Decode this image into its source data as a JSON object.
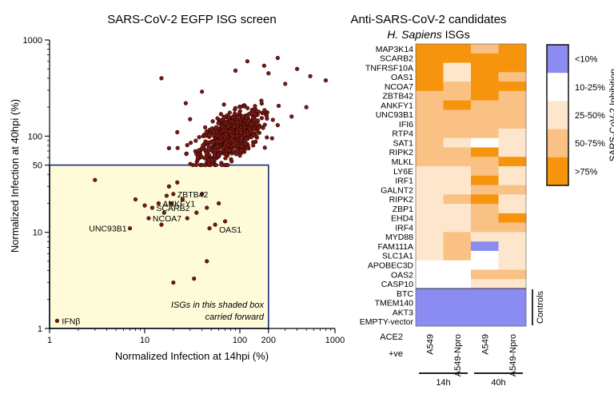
{
  "scatter": {
    "title": "SARS-CoV-2 EGFP ISG screen",
    "xlabel": "Normalized Infection at 14hpi (%)",
    "ylabel": "Normalized Infection at 40hpi (%)",
    "x_ticks": [
      "1",
      "10",
      "100",
      "200",
      "1000"
    ],
    "y_ticks": [
      "1",
      "10",
      "50",
      "100",
      "1000"
    ],
    "box_caption_line1": "ISGs in this shaded box",
    "box_caption_line2": "carried forward",
    "colors": {
      "point": "#7a1a12",
      "point_edge": "#2a0504",
      "box_fill": "#fdfbd8",
      "box_edge": "#1c2a80"
    }
  },
  "heatmap": {
    "title": "Anti-SARS-CoV-2 candidates",
    "subtitle_italic": "H. Sapiens",
    "subtitle_rest": " ISGs",
    "row_labels": [
      "MAP3K14",
      "SCARB2",
      "TNFRSF10A",
      "OAS1",
      "NCOA7",
      "ZBTB42",
      "ANKFY1",
      "UNC93B1",
      "IFI6",
      "RTP4",
      "SAT1",
      "RIPK2",
      "MLKL",
      "LY6E",
      "IRF1",
      "GALNT2",
      "RIPK2",
      "ZBP1",
      "EHD4",
      "IRF4",
      "MYD88",
      "FAM111A",
      "SLC1A1",
      "APOBEC3D",
      "OAS2",
      "CASP10",
      "BTC",
      "TMEM140",
      "AKT3",
      "EMPTY-vector"
    ],
    "col_labels": [
      "A549",
      "A549-Npro",
      "A549",
      "A549-Npro"
    ],
    "ace2_label": "ACE2",
    "ace2_sub": "+ve",
    "time_labels": [
      "14h",
      "40h"
    ],
    "controls_label": "Controls",
    "legend_title": "SARS-CoV-2 Inhibition",
    "legend_labels": [
      "<10%",
      "10-25%",
      "25-50%",
      "50-75%",
      ">75%"
    ],
    "level_colors": [
      "#8a8cf2",
      "#ffffff",
      "#fde6cc",
      "#f9c184",
      "#f7940e"
    ]
  },
  "chart_data": [
    {
      "type": "scatter",
      "title": "SARS-CoV-2 EGFP ISG screen",
      "xlabel": "Normalized Infection at 14hpi (%)",
      "ylabel": "Normalized Infection at 40hpi (%)",
      "x_scale": "log",
      "y_scale": "log",
      "xlim": [
        1,
        1000
      ],
      "ylim": [
        1,
        1000
      ],
      "threshold_box": {
        "x_max": 200,
        "y_max": 50
      },
      "labeled_points": [
        {
          "label": "IFNβ",
          "x": 1.2,
          "y": 1.2
        },
        {
          "label": "UNC93B1",
          "x": 7,
          "y": 11
        },
        {
          "label": "NCOA7",
          "x": 11,
          "y": 14
        },
        {
          "label": "SCARB2",
          "x": 12,
          "y": 18
        },
        {
          "label": "ANKFY1",
          "x": 14,
          "y": 20
        },
        {
          "label": "ZBTB42",
          "x": 20,
          "y": 25
        },
        {
          "label": "OAS1",
          "x": 55,
          "y": 12
        }
      ],
      "low_points": [
        {
          "x": 3,
          "y": 35
        },
        {
          "x": 8,
          "y": 22
        },
        {
          "x": 10,
          "y": 19
        },
        {
          "x": 15,
          "y": 12
        },
        {
          "x": 16,
          "y": 16
        },
        {
          "x": 17,
          "y": 24
        },
        {
          "x": 18,
          "y": 30
        },
        {
          "x": 19,
          "y": 20
        },
        {
          "x": 22,
          "y": 33
        },
        {
          "x": 25,
          "y": 22
        },
        {
          "x": 28,
          "y": 14
        },
        {
          "x": 35,
          "y": 16
        },
        {
          "x": 40,
          "y": 25
        },
        {
          "x": 45,
          "y": 18
        },
        {
          "x": 48,
          "y": 11
        },
        {
          "x": 60,
          "y": 20
        },
        {
          "x": 70,
          "y": 13
        },
        {
          "x": 20,
          "y": 3
        },
        {
          "x": 33,
          "y": 3.3
        },
        {
          "x": 45,
          "y": 5
        }
      ],
      "scattered_high": [
        {
          "x": 15,
          "y": 400
        },
        {
          "x": 22,
          "y": 110
        },
        {
          "x": 18,
          "y": 75
        },
        {
          "x": 27,
          "y": 220
        },
        {
          "x": 250,
          "y": 650
        },
        {
          "x": 300,
          "y": 350
        },
        {
          "x": 400,
          "y": 500
        },
        {
          "x": 550,
          "y": 420
        },
        {
          "x": 800,
          "y": 380
        },
        {
          "x": 180,
          "y": 540
        },
        {
          "x": 120,
          "y": 600
        },
        {
          "x": 500,
          "y": 200
        },
        {
          "x": 350,
          "y": 160
        },
        {
          "x": 30,
          "y": 150
        },
        {
          "x": 35,
          "y": 65
        },
        {
          "x": 200,
          "y": 450
        },
        {
          "x": 250,
          "y": 130
        },
        {
          "x": 40,
          "y": 290
        },
        {
          "x": 90,
          "y": 480
        }
      ],
      "cluster": {
        "center_x": 80,
        "center_y": 100,
        "count": 800,
        "note": "dense cloud of ISGs centred near 80% (14hpi) / 100% (40hpi)"
      }
    },
    {
      "type": "heatmap",
      "title": "Anti-SARS-CoV-2 candidates",
      "rows": [
        "MAP3K14",
        "SCARB2",
        "TNFRSF10A",
        "OAS1",
        "NCOA7",
        "ZBTB42",
        "ANKFY1",
        "UNC93B1",
        "IFI6",
        "RTP4",
        "SAT1",
        "RIPK2",
        "MLKL",
        "LY6E",
        "IRF1",
        "GALNT2",
        "RIPK2",
        "ZBP1",
        "EHD4",
        "IRF4",
        "MYD88",
        "FAM111A",
        "SLC1A1",
        "APOBEC3D",
        "OAS2",
        "CASP10",
        "BTC",
        "TMEM140",
        "AKT3",
        "EMPTY-vector"
      ],
      "columns": [
        "A549 14h",
        "A549-Npro 14h",
        "A549 40h",
        "A549-Npro 40h"
      ],
      "levels": [
        "<10%",
        "10-25%",
        "25-50%",
        "50-75%",
        ">75%"
      ],
      "values": [
        [
          4,
          4,
          3,
          4
        ],
        [
          4,
          4,
          4,
          4
        ],
        [
          4,
          2,
          4,
          4
        ],
        [
          4,
          2,
          4,
          3
        ],
        [
          4,
          3,
          4,
          4
        ],
        [
          3,
          3,
          4,
          3
        ],
        [
          3,
          4,
          3,
          3
        ],
        [
          3,
          3,
          3,
          3
        ],
        [
          3,
          3,
          3,
          3
        ],
        [
          3,
          3,
          3,
          2
        ],
        [
          3,
          2,
          1,
          2
        ],
        [
          3,
          3,
          4,
          2
        ],
        [
          3,
          3,
          3,
          4
        ],
        [
          2,
          2,
          3,
          2
        ],
        [
          2,
          2,
          4,
          2
        ],
        [
          2,
          2,
          3,
          3
        ],
        [
          2,
          3,
          4,
          2
        ],
        [
          2,
          2,
          3,
          2
        ],
        [
          2,
          2,
          3,
          4
        ],
        [
          2,
          2,
          3,
          3
        ],
        [
          2,
          3,
          2,
          2
        ],
        [
          2,
          3,
          0,
          2
        ],
        [
          2,
          3,
          1,
          2
        ],
        [
          1,
          1,
          1,
          2
        ],
        [
          1,
          1,
          3,
          3
        ],
        [
          1,
          1,
          2,
          2
        ],
        [
          0,
          0,
          0,
          0
        ],
        [
          0,
          0,
          0,
          0
        ],
        [
          0,
          0,
          0,
          0
        ],
        [
          0,
          0,
          0,
          0
        ]
      ],
      "controls": [
        "BTC",
        "TMEM140",
        "AKT3",
        "EMPTY-vector"
      ],
      "legend_title": "SARS-CoV-2 Inhibition",
      "legend_position": "right"
    }
  ]
}
